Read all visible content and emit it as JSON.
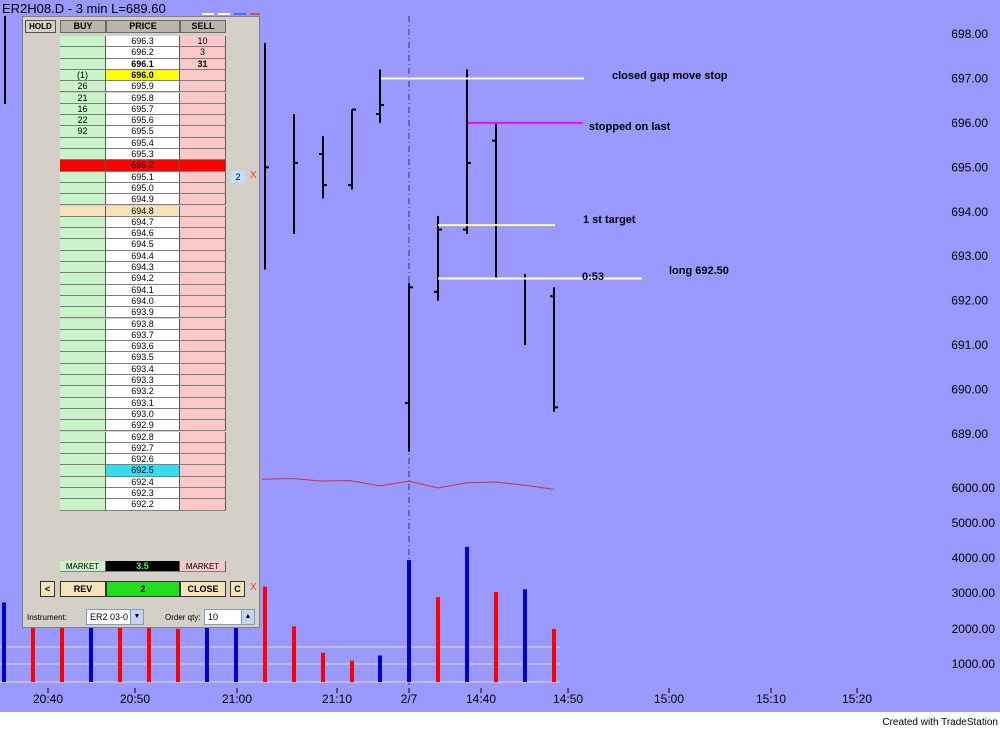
{
  "chart_title": "ER2H08.D - 3 min  L=689.60",
  "footer_credit": "Created with TradeStation",
  "colors": {
    "chart_bg": "#9999ff",
    "bar": "#000000",
    "up_volume": "#0000cc",
    "down_volume": "#ff0000",
    "trendline": "#cc3344"
  },
  "chart_data": {
    "type": "bar",
    "price_axis": {
      "ticks": [
        "698.00",
        "697.00",
        "696.00",
        "695.00",
        "694.00",
        "693.00",
        "692.00",
        "691.00",
        "690.00",
        "689.00"
      ],
      "range": [
        688.4,
        698.1
      ]
    },
    "volume_axis": {
      "ticks": [
        "6000.00",
        "5000.00",
        "4000.00",
        "3000.00",
        "2000.00",
        "1000.00"
      ],
      "range": [
        0,
        6000
      ]
    },
    "x_ticks": [
      "20:40",
      "20:50",
      "21:00",
      "21:10",
      "2/7",
      "14:40",
      "14:50",
      "15:00",
      "15:10",
      "15:20"
    ],
    "price_bars": [
      {
        "high": 697.8,
        "low": 695.3,
        "open": null,
        "close": null
      },
      {
        "high": 695.6,
        "low": 692.7,
        "open": null,
        "close": 695.0
      },
      {
        "high": 696.2,
        "low": 693.5,
        "open": null,
        "close": 695.1
      },
      {
        "high": 695.7,
        "low": 694.3,
        "open": 695.3,
        "close": 694.6
      },
      {
        "high": 696.3,
        "low": 694.5,
        "open": 694.6,
        "close": 696.3
      },
      {
        "high": 697.2,
        "low": 696.0,
        "open": 696.2,
        "close": 696.4
      },
      {
        "high": 692.4,
        "low": 688.6,
        "open": 689.7,
        "close": 692.3
      },
      {
        "high": 693.9,
        "low": 692.0,
        "open": 692.2,
        "close": 693.6
      },
      {
        "high": 697.2,
        "low": 693.5,
        "open": 693.6,
        "close": 695.1
      },
      {
        "high": 696.0,
        "low": 692.5,
        "open": 695.6,
        "close": 692.5
      },
      {
        "high": 692.6,
        "low": 691.0,
        "open": 692.5,
        "close": 692.5
      },
      {
        "high": 692.3,
        "low": 689.5,
        "open": 692.1,
        "close": 689.6
      }
    ],
    "volume_bars": [
      {
        "value": 3000,
        "dir": "up"
      },
      {
        "value": 2600,
        "dir": "down"
      },
      {
        "value": 2500,
        "dir": "down"
      },
      {
        "value": 2600,
        "dir": "up"
      },
      {
        "value": 2500,
        "dir": "down"
      },
      {
        "value": 2700,
        "dir": "down"
      },
      {
        "value": 2000,
        "dir": "down"
      },
      {
        "value": 2600,
        "dir": "up"
      },
      {
        "value": 2900,
        "dir": "up"
      },
      {
        "value": 3600,
        "dir": "down"
      },
      {
        "value": 2100,
        "dir": "down"
      },
      {
        "value": 1100,
        "dir": "down"
      },
      {
        "value": 800,
        "dir": "down"
      },
      {
        "value": 1000,
        "dir": "up"
      },
      {
        "value": 4600,
        "dir": "up"
      },
      {
        "value": 3200,
        "dir": "down"
      },
      {
        "value": 5100,
        "dir": "up"
      },
      {
        "value": 3400,
        "dir": "down"
      },
      {
        "value": 3500,
        "dir": "up"
      },
      {
        "value": 2000,
        "dir": "down"
      }
    ],
    "volume_average_line": [
      6250,
      6270,
      6200,
      6210,
      6060,
      6200,
      6000,
      6150,
      6170,
      6080,
      5960
    ],
    "annotations": [
      {
        "text": "closed gap move stop",
        "price": 697.0,
        "color": "#ffffaa"
      },
      {
        "text": "stopped on last",
        "price": 696.0,
        "color": "#ff00ff"
      },
      {
        "text": "1 st target",
        "price": 693.7,
        "color": "#ffff88"
      },
      {
        "text": "long 692.50",
        "price": 692.5,
        "color": "#ffffff"
      },
      {
        "text": "0:53",
        "price": 692.5,
        "color": "#ffffff"
      }
    ]
  },
  "dom": {
    "hold_label": "HOLD",
    "headers": {
      "buy": "BUY",
      "price": "PRICE",
      "sell": "SELL"
    },
    "rows": [
      {
        "buy": "",
        "price": "696.3",
        "sell": "10"
      },
      {
        "buy": "",
        "price": "696.2",
        "sell": "3"
      },
      {
        "buy": "",
        "price": "696.1",
        "sell": "31",
        "bold": true
      },
      {
        "buy": "(1)",
        "price": "696.0",
        "sell": "",
        "price_bg": "#ffff00",
        "bold": true
      },
      {
        "buy": "26",
        "price": "695.9",
        "sell": ""
      },
      {
        "buy": "21",
        "price": "695.8",
        "sell": ""
      },
      {
        "buy": "16",
        "price": "695.7",
        "sell": ""
      },
      {
        "buy": "22",
        "price": "695.6",
        "sell": ""
      },
      {
        "buy": "92",
        "price": "695.5",
        "sell": ""
      },
      {
        "buy": "",
        "price": "695.4",
        "sell": ""
      },
      {
        "buy": "",
        "price": "695.3",
        "sell": ""
      },
      {
        "buy": "",
        "price": "695.2",
        "sell": "",
        "row_bg": "#ff0000"
      },
      {
        "buy": "",
        "price": "695.1",
        "sell": ""
      },
      {
        "buy": "",
        "price": "695.0",
        "sell": ""
      },
      {
        "buy": "",
        "price": "694.9",
        "sell": ""
      },
      {
        "buy": "",
        "price": "694.8",
        "sell": "",
        "buy_bg": "#f4e2b8",
        "price_bg": "#f4e2b8"
      },
      {
        "buy": "",
        "price": "694.7",
        "sell": ""
      },
      {
        "buy": "",
        "price": "694.6",
        "sell": ""
      },
      {
        "buy": "",
        "price": "694.5",
        "sell": ""
      },
      {
        "buy": "",
        "price": "694.4",
        "sell": ""
      },
      {
        "buy": "",
        "price": "694.3",
        "sell": ""
      },
      {
        "buy": "",
        "price": "694.2",
        "sell": ""
      },
      {
        "buy": "",
        "price": "694.1",
        "sell": ""
      },
      {
        "buy": "",
        "price": "694.0",
        "sell": ""
      },
      {
        "buy": "",
        "price": "693.9",
        "sell": ""
      },
      {
        "buy": "",
        "price": "693.8",
        "sell": ""
      },
      {
        "buy": "",
        "price": "693.7",
        "sell": ""
      },
      {
        "buy": "",
        "price": "693.6",
        "sell": ""
      },
      {
        "buy": "",
        "price": "693.5",
        "sell": ""
      },
      {
        "buy": "",
        "price": "693.4",
        "sell": ""
      },
      {
        "buy": "",
        "price": "693.3",
        "sell": ""
      },
      {
        "buy": "",
        "price": "693.2",
        "sell": ""
      },
      {
        "buy": "",
        "price": "693.1",
        "sell": ""
      },
      {
        "buy": "",
        "price": "693.0",
        "sell": ""
      },
      {
        "buy": "",
        "price": "692.9",
        "sell": ""
      },
      {
        "buy": "",
        "price": "692.8",
        "sell": ""
      },
      {
        "buy": "",
        "price": "692.7",
        "sell": ""
      },
      {
        "buy": "",
        "price": "692.6",
        "sell": ""
      },
      {
        "buy": "",
        "price": "692.5",
        "sell": "",
        "price_bg": "#33ddee"
      },
      {
        "buy": "",
        "price": "692.4",
        "sell": ""
      },
      {
        "buy": "",
        "price": "692.3",
        "sell": ""
      },
      {
        "buy": "",
        "price": "692.2",
        "sell": ""
      }
    ],
    "working_order": {
      "qty": "2",
      "cancel": "X"
    },
    "market_row": {
      "buy": "MARKET",
      "center": "3.5",
      "sell": "MARKET"
    },
    "controls": {
      "scroll_left": "<",
      "reverse": "REV",
      "position": "2",
      "close": "CLOSE",
      "cancel_all": "C",
      "cancel_all_x": "X"
    },
    "instrument_label": "Instrument:",
    "instrument_value": "ER2 03-0",
    "qty_label": "Order qty:",
    "qty_value": "10"
  }
}
